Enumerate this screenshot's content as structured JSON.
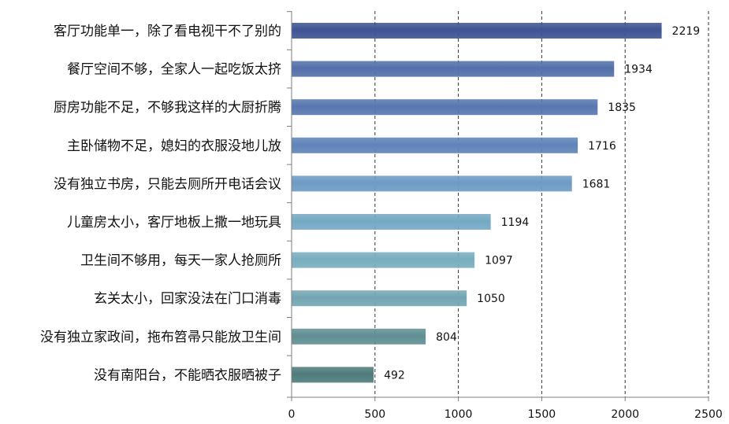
{
  "chart_data": {
    "type": "bar",
    "orientation": "horizontal",
    "categories": [
      "客厅功能单一，除了看电视干不了别的",
      "餐厅空间不够，全家人一起吃饭太挤",
      "厨房功能不足，不够我这样的大厨折腾",
      "主卧储物不足，媳妇的衣服没地儿放",
      "没有独立书房，只能去厕所开电话会议",
      "儿童房太小，客厅地板上撒一地玩具",
      "卫生间不够用，每天一家人抢厕所",
      "玄关太小，回家没法在门口消毒",
      "没有独立家政间，拖布笤帚只能放卫生间",
      "没有南阳台，不能晒衣服晒被子"
    ],
    "values": [
      2219,
      1934,
      1835,
      1716,
      1681,
      1194,
      1097,
      1050,
      804,
      492
    ],
    "value_labels": [
      "2219",
      "1934",
      "1835",
      "1716",
      "1681",
      "1194",
      "1097",
      "1050",
      "804",
      "492"
    ],
    "bar_colors": [
      "#3d5393",
      "#5470ab",
      "#5876b0",
      "#5f84b8",
      "#6d9bc4",
      "#74a9c3",
      "#78aebe",
      "#73a6b2",
      "#5f8f93",
      "#4e7b7c"
    ],
    "xlim": [
      0,
      2500
    ],
    "x_ticks": [
      "0",
      "500",
      "1000",
      "1500",
      "2000",
      "2500"
    ],
    "x_tick_values": [
      0,
      500,
      1000,
      1500,
      2000,
      2500
    ],
    "grid": "vertical-dashed",
    "legend": "none",
    "title": "",
    "xlabel": "",
    "ylabel": ""
  }
}
